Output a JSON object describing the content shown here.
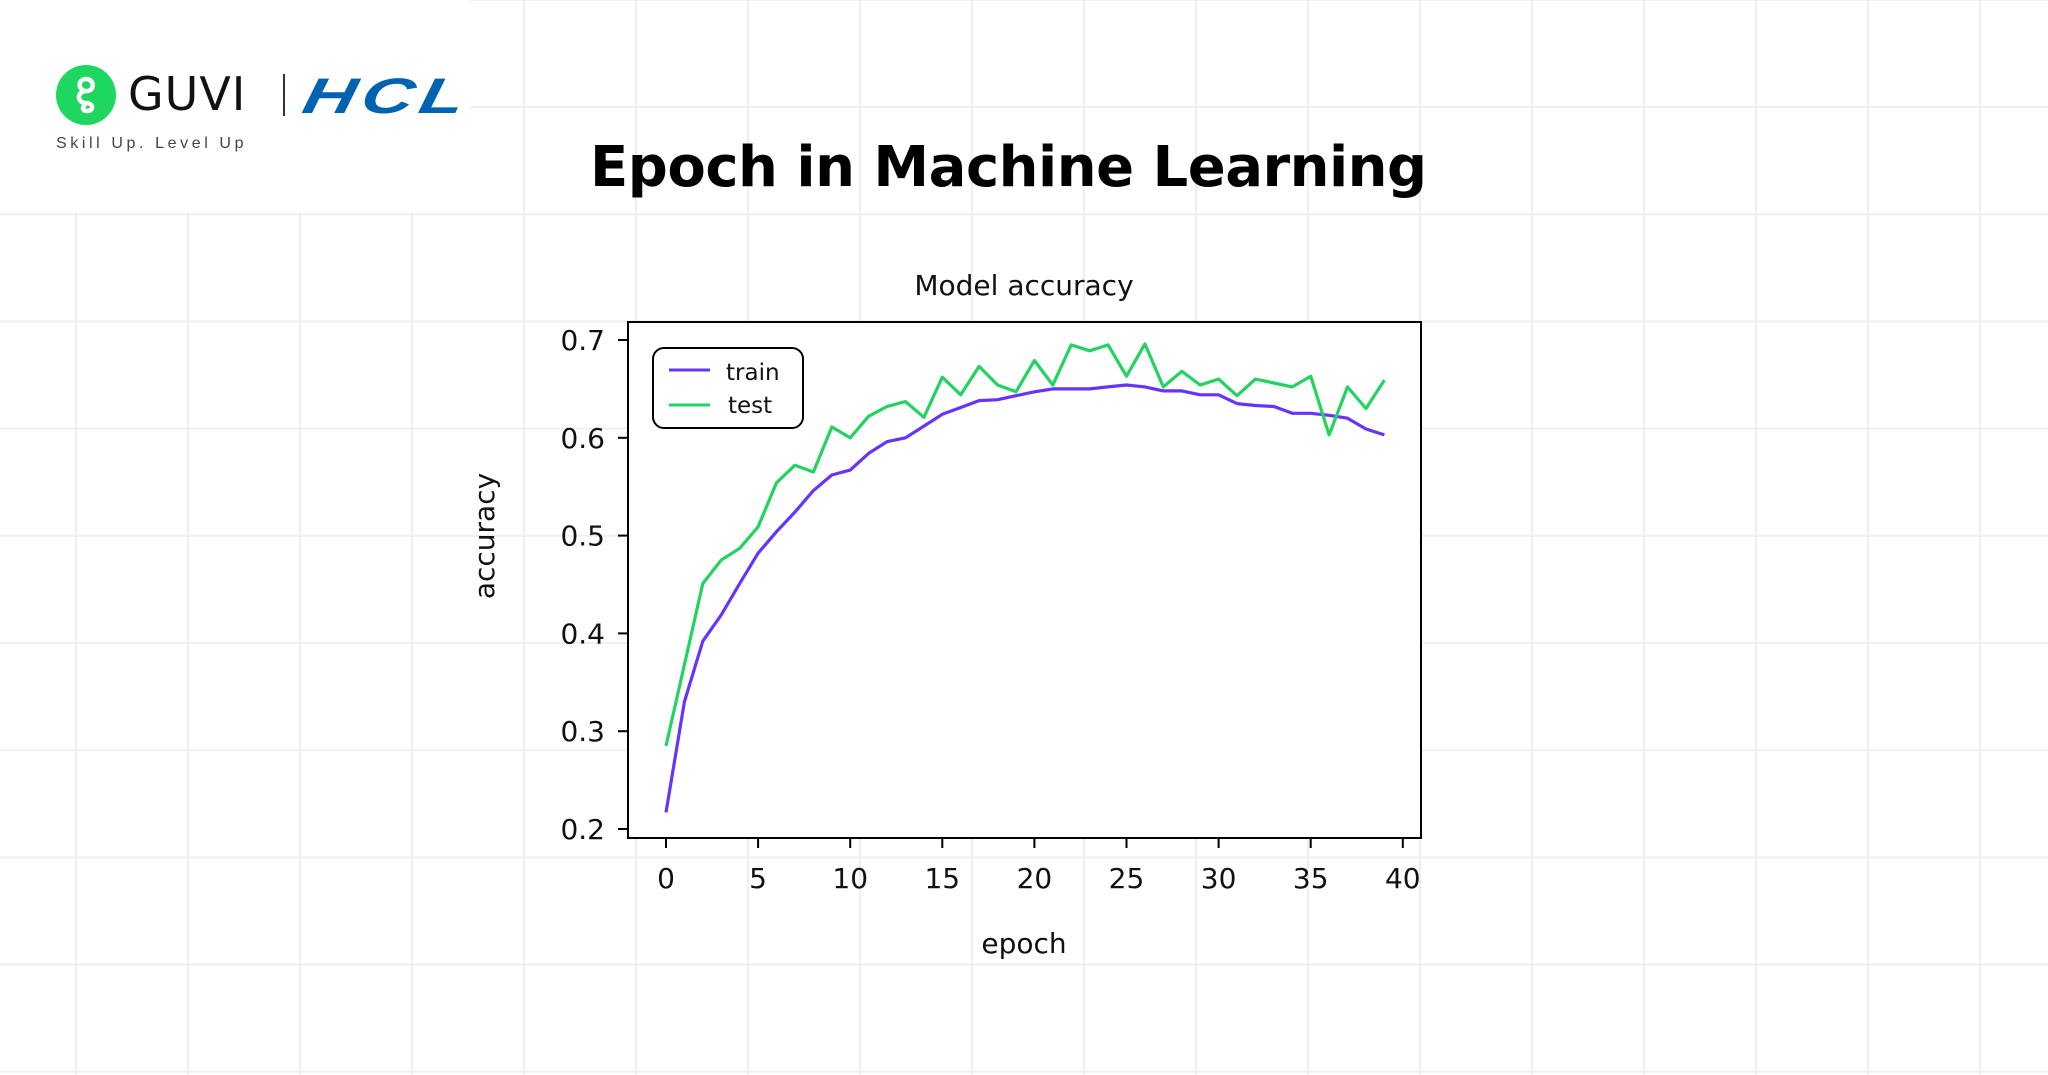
{
  "brand": {
    "guvi_name": "GUVI",
    "partner_name": "HCL",
    "tagline": "Skill Up. Level Up",
    "guvi_color": "#1ed760",
    "partner_color": "#0063b1"
  },
  "page": {
    "title": "Epoch in Machine Learning"
  },
  "chart_data": {
    "type": "line",
    "title": "Model accuracy",
    "xlabel": "epoch",
    "ylabel": "accuracy",
    "xlim": [
      -2,
      41
    ],
    "ylim": [
      0.19,
      0.72
    ],
    "xticks": [
      0,
      5,
      10,
      15,
      20,
      25,
      30,
      35,
      40
    ],
    "yticks": [
      0.2,
      0.3,
      0.4,
      0.5,
      0.6,
      0.7
    ],
    "grid": false,
    "legend_position": "upper left",
    "x": [
      0,
      1,
      2,
      3,
      4,
      5,
      6,
      7,
      8,
      9,
      10,
      11,
      12,
      13,
      14,
      15,
      16,
      17,
      18,
      19,
      20,
      21,
      22,
      23,
      24,
      25,
      26,
      27,
      28,
      29,
      30,
      31,
      32,
      33,
      34,
      35,
      36,
      37,
      38,
      39
    ],
    "series": [
      {
        "name": "train",
        "color": "#6633ff",
        "values": [
          0.217,
          0.33,
          0.392,
          0.419,
          0.451,
          0.482,
          0.504,
          0.524,
          0.546,
          0.562,
          0.567,
          0.584,
          0.596,
          0.6,
          0.612,
          0.624,
          0.631,
          0.638,
          0.639,
          0.643,
          0.647,
          0.65,
          0.65,
          0.65,
          0.652,
          0.654,
          0.652,
          0.648,
          0.648,
          0.644,
          0.644,
          0.635,
          0.633,
          0.632,
          0.625,
          0.625,
          0.623,
          0.62,
          0.609,
          0.603
        ]
      },
      {
        "name": "test",
        "color": "#22d35f",
        "values": [
          0.285,
          0.368,
          0.451,
          0.475,
          0.487,
          0.509,
          0.554,
          0.572,
          0.565,
          0.611,
          0.6,
          0.622,
          0.632,
          0.637,
          0.621,
          0.662,
          0.644,
          0.673,
          0.654,
          0.647,
          0.679,
          0.654,
          0.695,
          0.689,
          0.695,
          0.663,
          0.696,
          0.652,
          0.668,
          0.654,
          0.66,
          0.643,
          0.66,
          0.656,
          0.652,
          0.663,
          0.603,
          0.652,
          0.63,
          0.659
        ]
      }
    ]
  }
}
